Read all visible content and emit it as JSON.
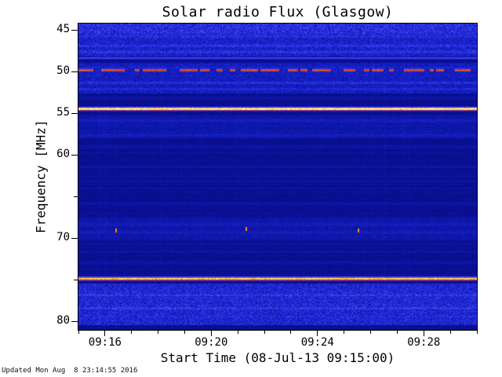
{
  "page": {
    "background": "#ffffff",
    "footer_text": "Updated Mon Aug  8 23:14:55 2016"
  },
  "chart_data": {
    "type": "heatmap",
    "title": "Solar radio Flux (Glasgow)",
    "xlabel": "Start Time (08-Jul-13 09:15:00)",
    "ylabel": "Frequency [MHz]",
    "grid": false,
    "legend": "none",
    "x_axis": {
      "start_date": "08-Jul-13",
      "start_time": "09:15:00",
      "range_minutes": [
        0,
        15
      ],
      "major_ticks": [
        {
          "minute": 1,
          "label": "09:16"
        },
        {
          "minute": 5,
          "label": "09:20"
        },
        {
          "minute": 9,
          "label": "09:24"
        },
        {
          "minute": 13,
          "label": "09:28"
        }
      ],
      "minor_tick_step_minutes": 1
    },
    "y_axis": {
      "scale": "linear-inverted",
      "range_mhz": [
        44.2,
        81.0
      ],
      "major_ticks": [
        45,
        50,
        55,
        60,
        70,
        80
      ],
      "minor_ticks": [
        65,
        75
      ]
    },
    "palette": {
      "background_blue": "#000060",
      "noise_blue": "#1824d2",
      "bright_blue": "#5050ff",
      "line_red": "#e6280a",
      "line_orange": "#ff8c00",
      "line_yellow": "#fffa96",
      "line_white": "#ffffff",
      "colormap_stops": [
        [
          0.0,
          [
            0,
            0,
            96
          ]
        ],
        [
          0.3,
          [
            24,
            36,
            210
          ]
        ],
        [
          0.5,
          [
            80,
            80,
            255
          ]
        ],
        [
          0.62,
          [
            230,
            40,
            10
          ]
        ],
        [
          0.78,
          [
            255,
            140,
            0
          ]
        ],
        [
          0.9,
          [
            255,
            250,
            150
          ]
        ],
        [
          1.0,
          [
            255,
            255,
            255
          ]
        ]
      ]
    },
    "background_intensity": 0.1,
    "noise_bands": [
      {
        "f_lo": 44.2,
        "f_hi": 45.4,
        "boost": 0.22,
        "flicker": 0.3
      },
      {
        "f_lo": 45.4,
        "f_hi": 48.2,
        "boost": 0.13,
        "flicker": 0.22
      },
      {
        "f_lo": 48.9,
        "f_hi": 52.6,
        "boost": 0.09,
        "flicker": 0.18
      },
      {
        "f_lo": 55.2,
        "f_hi": 58.0,
        "boost": 0.035,
        "flicker": 0.1
      },
      {
        "f_lo": 67.5,
        "f_hi": 70.2,
        "boost": 0.04,
        "flicker": 0.1
      },
      {
        "f_lo": 75.4,
        "f_hi": 80.4,
        "boost": 0.15,
        "flicker": 0.26
      }
    ],
    "interference_lines": [
      {
        "freq_mhz": 48.35,
        "half_width_mhz": 0.16,
        "intensity": 0.5,
        "jitter": 0.06,
        "style": "continuous"
      },
      {
        "freq_mhz": 49.8,
        "half_width_mhz": 0.28,
        "intensity": 0.7,
        "jitter": 0.1,
        "style": "dashed"
      },
      {
        "freq_mhz": 54.45,
        "half_width_mhz": 0.3,
        "intensity": 0.97,
        "jitter": 0.05,
        "style": "continuous"
      },
      {
        "freq_mhz": 74.85,
        "half_width_mhz": 0.32,
        "intensity": 0.88,
        "jitter": 0.06,
        "style": "continuous"
      }
    ],
    "faint_lines": [
      {
        "freq_mhz": 45.7,
        "intensity": 0.08
      },
      {
        "freq_mhz": 46.9,
        "intensity": 0.1
      },
      {
        "freq_mhz": 47.6,
        "intensity": 0.08
      },
      {
        "freq_mhz": 51.3,
        "intensity": 0.12
      },
      {
        "freq_mhz": 52.1,
        "intensity": 0.08
      },
      {
        "freq_mhz": 53.2,
        "intensity": 0.06
      },
      {
        "freq_mhz": 55.9,
        "intensity": 0.06
      },
      {
        "freq_mhz": 57.6,
        "intensity": 0.07
      },
      {
        "freq_mhz": 59.0,
        "intensity": 0.05
      },
      {
        "freq_mhz": 61.4,
        "intensity": 0.06
      },
      {
        "freq_mhz": 63.1,
        "intensity": 0.05
      },
      {
        "freq_mhz": 65.8,
        "intensity": 0.05
      },
      {
        "freq_mhz": 68.4,
        "intensity": 0.06
      },
      {
        "freq_mhz": 69.3,
        "intensity": 0.06
      },
      {
        "freq_mhz": 71.6,
        "intensity": 0.05
      },
      {
        "freq_mhz": 72.9,
        "intensity": 0.06
      },
      {
        "freq_mhz": 76.8,
        "intensity": 0.08
      },
      {
        "freq_mhz": 78.4,
        "intensity": 0.08
      }
    ],
    "dot_events": [
      {
        "minute": 1.4,
        "freq_mhz": 69.0
      },
      {
        "minute": 6.3,
        "freq_mhz": 68.8
      },
      {
        "minute": 10.5,
        "freq_mhz": 69.0
      }
    ]
  }
}
